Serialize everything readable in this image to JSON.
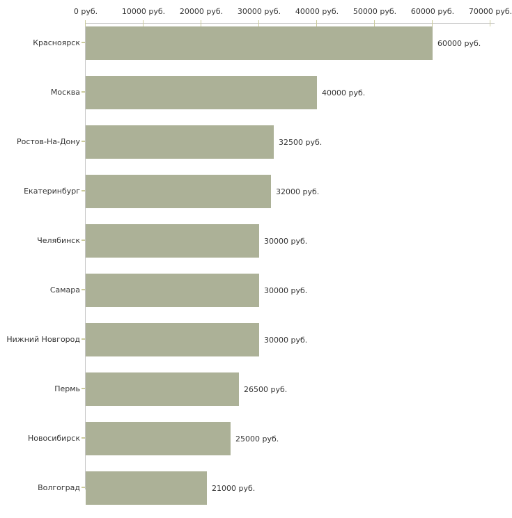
{
  "chart_data": {
    "type": "bar",
    "orientation": "horizontal",
    "title": "",
    "xlabel": "",
    "ylabel": "",
    "unit": "руб.",
    "categories": [
      "Красноярск",
      "Москва",
      "Ростов-На-Дону",
      "Екатеринбург",
      "Челябинск",
      "Самара",
      "Нижний Новгород",
      "Пермь",
      "Новосибирск",
      "Волгоград"
    ],
    "values": [
      60000,
      40000,
      32500,
      32000,
      30000,
      30000,
      30000,
      26500,
      25000,
      21000
    ],
    "value_labels": [
      "60000 руб.",
      "40000 руб.",
      "32500 руб.",
      "32000 руб.",
      "30000 руб.",
      "30000 руб.",
      "30000 руб.",
      "26500 руб.",
      "25000 руб.",
      "21000 руб."
    ],
    "xlim": [
      0,
      70000
    ],
    "x_ticks": [
      0,
      10000,
      20000,
      30000,
      40000,
      50000,
      60000,
      70000
    ],
    "x_tick_labels": [
      "0 руб.",
      "10000 руб.",
      "20000 руб.",
      "30000 руб.",
      "40000 руб.",
      "50000 руб.",
      "60000 руб.",
      "70000 руб."
    ],
    "grid": false,
    "legend": null,
    "colors": {
      "bar": "#acb197",
      "axis_line": "#c6c6c6",
      "tick_mark": "#cbcb9b",
      "text": "#333333",
      "background": "#ffffff"
    }
  }
}
